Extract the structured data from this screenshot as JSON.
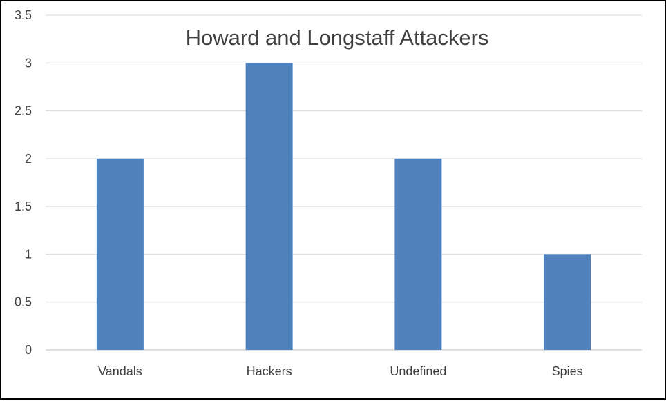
{
  "chart_data": {
    "type": "bar",
    "title": "Howard and Longstaff Attackers",
    "categories": [
      "Vandals",
      "Hackers",
      "Undefined",
      "Spies"
    ],
    "values": [
      2,
      3,
      2,
      1
    ],
    "xlabel": "",
    "ylabel": "",
    "ylim": [
      0,
      3.5
    ],
    "yticks": [
      "0",
      "0.5",
      "1",
      "1.5",
      "2",
      "2.5",
      "3",
      "3.5"
    ],
    "grid": true,
    "legend": "none",
    "bar_color": "#4f81bd"
  }
}
